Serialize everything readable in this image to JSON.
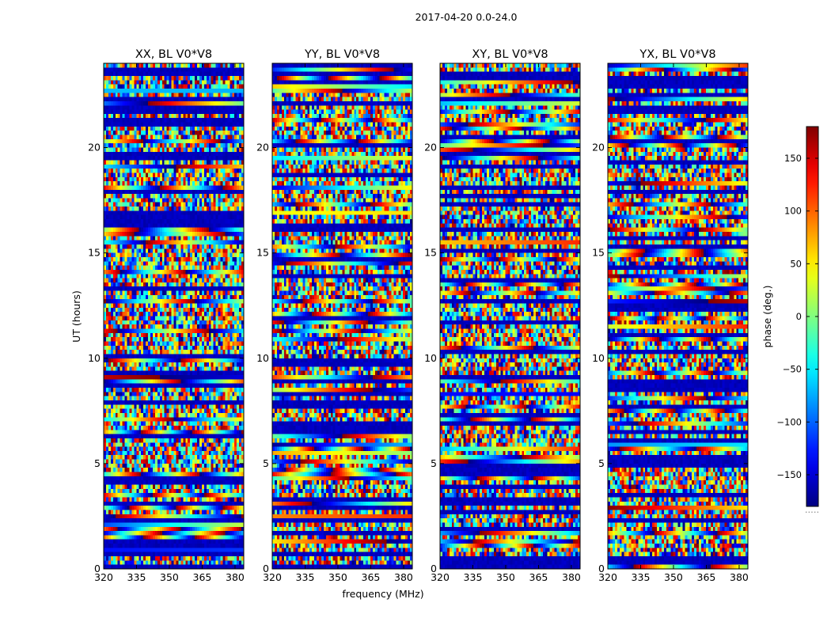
{
  "chart_data": {
    "type": "heatmap",
    "title": "2017-04-20 0.0-24.0",
    "xlabel": "frequency (MHz)",
    "ylabel": "UT (hours)",
    "xlim": [
      320,
      384
    ],
    "ylim": [
      0,
      24
    ],
    "xticks": [
      320,
      335,
      350,
      365,
      380
    ],
    "yticks": [
      0,
      5,
      10,
      15,
      20
    ],
    "panels": [
      {
        "name": "XX",
        "title": "XX, BL V0*V8"
      },
      {
        "name": "YY",
        "title": "YY, BL V0*V8"
      },
      {
        "name": "XY",
        "title": "XY, BL V0*V8"
      },
      {
        "name": "YX",
        "title": "YX, BL V0*V8"
      }
    ],
    "colorbar": {
      "label": "phase (deg.)",
      "colormap": "jet",
      "range": [
        -180,
        180
      ],
      "ticks": [
        150,
        100,
        50,
        0,
        -50,
        -100,
        -150
      ],
      "tick_labels": [
        "150",
        "100",
        "50",
        "0",
        "−50",
        "−100",
        "−150"
      ],
      "extra_label": "....."
    }
  }
}
